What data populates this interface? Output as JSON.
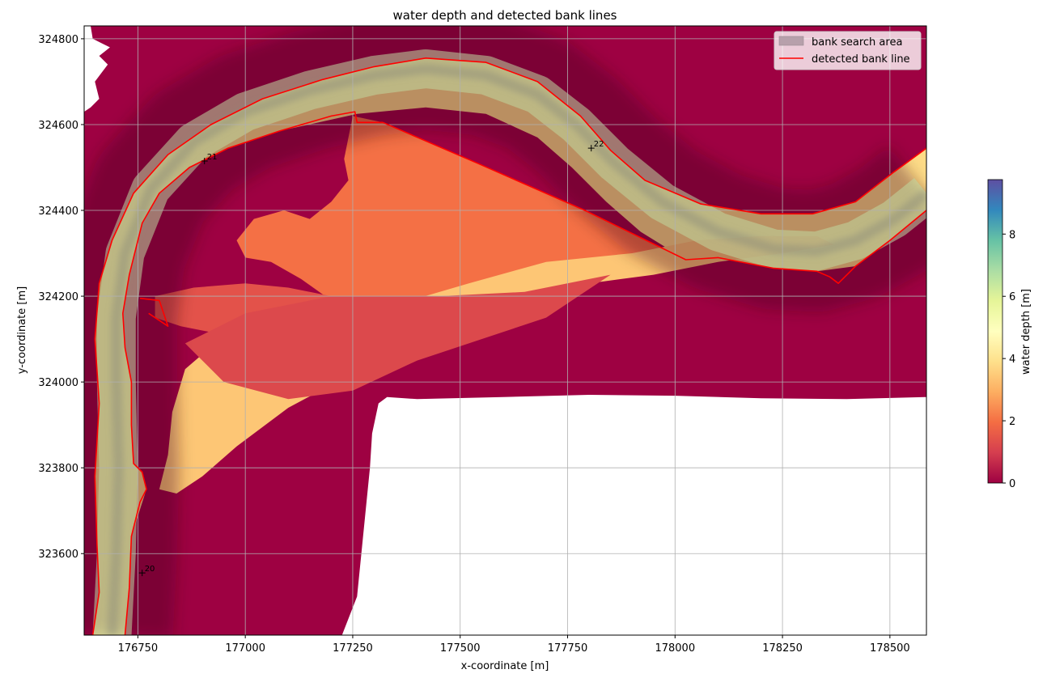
{
  "chart_data": {
    "type": "heatmap",
    "title": "water depth and detected bank lines",
    "xlabel": "x-coordinate [m]",
    "ylabel": "y-coordinate [m]",
    "xlim": [
      176625,
      178585
    ],
    "ylim": [
      323410,
      324830
    ],
    "xticks": [
      176750,
      177000,
      177250,
      177500,
      177750,
      178000,
      178250,
      178500
    ],
    "yticks": [
      323600,
      323800,
      324000,
      324200,
      324400,
      324600,
      324800
    ],
    "grid": true,
    "legend_position": "top-right",
    "legend": [
      {
        "label": "bank search area",
        "type": "patch",
        "color": "#b7a0ab"
      },
      {
        "label": "detected bank line",
        "type": "line",
        "color": "#ff0000"
      }
    ],
    "colorbar": {
      "label": "water depth [m]",
      "min": 0,
      "max": 9.75,
      "ticks": [
        0,
        2,
        4,
        6,
        8
      ],
      "colormap": "Spectral",
      "colors": [
        "#9e0142",
        "#d53e4f",
        "#f46d43",
        "#fdae61",
        "#fee08b",
        "#ffffbf",
        "#e6f598",
        "#abdda4",
        "#66c2a5",
        "#3288bd",
        "#5e4fa2"
      ]
    },
    "background_color": "#9e0142",
    "annotations": [
      {
        "label": "20",
        "x": 176760,
        "y": 323555
      },
      {
        "label": "21",
        "x": 176905,
        "y": 324515
      },
      {
        "label": "22",
        "x": 177805,
        "y": 324545
      }
    ],
    "bank_lines": [
      {
        "name": "left bank",
        "points": [
          [
            176645,
            323410
          ],
          [
            176660,
            323510
          ],
          [
            176655,
            323620
          ],
          [
            176650,
            323780
          ],
          [
            176660,
            323950
          ],
          [
            176650,
            324100
          ],
          [
            176660,
            324230
          ],
          [
            176690,
            324330
          ],
          [
            176740,
            324440
          ],
          [
            176820,
            324530
          ],
          [
            176920,
            324600
          ],
          [
            177040,
            324660
          ],
          [
            177180,
            324705
          ],
          [
            177300,
            324735
          ],
          [
            177420,
            324755
          ],
          [
            177560,
            324745
          ],
          [
            177680,
            324700
          ],
          [
            177780,
            324620
          ],
          [
            177850,
            324540
          ],
          [
            177930,
            324470
          ],
          [
            178060,
            324415
          ],
          [
            178200,
            324392
          ],
          [
            178320,
            324392
          ],
          [
            178420,
            324420
          ],
          [
            178510,
            324490
          ],
          [
            178585,
            324545
          ]
        ]
      },
      {
        "name": "right bank",
        "points": [
          [
            176720,
            323410
          ],
          [
            176730,
            323520
          ],
          [
            176735,
            323640
          ],
          [
            176755,
            323720
          ],
          [
            176770,
            323750
          ],
          [
            176760,
            323790
          ],
          [
            176740,
            323810
          ],
          [
            176735,
            323900
          ],
          [
            176735,
            324000
          ],
          [
            176720,
            324080
          ],
          [
            176715,
            324160
          ],
          [
            176730,
            324250
          ],
          [
            176760,
            324370
          ],
          [
            176800,
            324440
          ],
          [
            176870,
            324500
          ],
          [
            176960,
            324545
          ],
          [
            177080,
            324585
          ],
          [
            177200,
            324620
          ],
          [
            177255,
            324630
          ],
          [
            177260,
            324605
          ],
          [
            177320,
            324605
          ],
          [
            177540,
            324510
          ],
          [
            177790,
            324400
          ],
          [
            178025,
            324285
          ],
          [
            178100,
            324290
          ],
          [
            178230,
            324265
          ],
          [
            178330,
            324258
          ],
          [
            178360,
            324245
          ],
          [
            178380,
            324230
          ],
          [
            178420,
            324270
          ],
          [
            178500,
            324330
          ],
          [
            178585,
            324400
          ]
        ]
      },
      {
        "name": "channel loop",
        "points": [
          [
            176755,
            324195
          ],
          [
            176800,
            324190
          ],
          [
            176820,
            324130
          ],
          [
            176775,
            324160
          ]
        ]
      }
    ],
    "search_area_centerline": [
      [
        176690,
        323410
      ],
      [
        176700,
        323600
      ],
      [
        176705,
        323800
      ],
      [
        176700,
        324000
      ],
      [
        176700,
        324150
      ],
      [
        176720,
        324300
      ],
      [
        176780,
        324450
      ],
      [
        176880,
        324560
      ],
      [
        177000,
        324630
      ],
      [
        177150,
        324680
      ],
      [
        177300,
        324715
      ],
      [
        177420,
        324730
      ],
      [
        177560,
        324715
      ],
      [
        177680,
        324670
      ],
      [
        177770,
        324600
      ],
      [
        177860,
        324510
      ],
      [
        177970,
        324420
      ],
      [
        178100,
        324350
      ],
      [
        178230,
        324310
      ],
      [
        178330,
        324305
      ],
      [
        178420,
        324330
      ],
      [
        178510,
        324380
      ],
      [
        178585,
        324440
      ]
    ],
    "depth_regions": [
      {
        "name": "main channel",
        "depth": 3.8,
        "points": [
          [
            176645,
            323410
          ],
          [
            176660,
            323510
          ],
          [
            176655,
            323620
          ],
          [
            176650,
            323780
          ],
          [
            176660,
            323950
          ],
          [
            176650,
            324100
          ],
          [
            176660,
            324230
          ],
          [
            176690,
            324330
          ],
          [
            176740,
            324440
          ],
          [
            176820,
            324530
          ],
          [
            176920,
            324600
          ],
          [
            177040,
            324660
          ],
          [
            177180,
            324705
          ],
          [
            177300,
            324735
          ],
          [
            177420,
            324755
          ],
          [
            177560,
            324745
          ],
          [
            177680,
            324700
          ],
          [
            177780,
            324620
          ],
          [
            177850,
            324540
          ],
          [
            177930,
            324470
          ],
          [
            178060,
            324415
          ],
          [
            178200,
            324392
          ],
          [
            178320,
            324392
          ],
          [
            178420,
            324420
          ],
          [
            178510,
            324490
          ],
          [
            178585,
            324545
          ],
          [
            178585,
            324400
          ],
          [
            178500,
            324330
          ],
          [
            178420,
            324270
          ],
          [
            178330,
            324258
          ],
          [
            178230,
            324265
          ],
          [
            178100,
            324290
          ],
          [
            178025,
            324285
          ],
          [
            177920,
            324350
          ],
          [
            177840,
            324420
          ],
          [
            177760,
            324500
          ],
          [
            177680,
            324570
          ],
          [
            177560,
            324625
          ],
          [
            177420,
            324640
          ],
          [
            177260,
            324625
          ],
          [
            177080,
            324585
          ],
          [
            176960,
            324545
          ],
          [
            176870,
            324500
          ],
          [
            176800,
            324440
          ],
          [
            176760,
            324370
          ],
          [
            176730,
            324250
          ],
          [
            176715,
            324160
          ],
          [
            176720,
            324080
          ],
          [
            176735,
            324000
          ],
          [
            176735,
            323900
          ],
          [
            176740,
            323810
          ],
          [
            176760,
            323790
          ],
          [
            176770,
            323750
          ],
          [
            176735,
            323640
          ],
          [
            176730,
            323520
          ],
          [
            176720,
            323410
          ]
        ]
      },
      {
        "name": "upper floodplain",
        "depth": 2.0,
        "points": [
          [
            177250,
            324620
          ],
          [
            177320,
            324605
          ],
          [
            177540,
            324510
          ],
          [
            177790,
            324400
          ],
          [
            178025,
            324285
          ],
          [
            177900,
            324260
          ],
          [
            177700,
            324200
          ],
          [
            177550,
            324180
          ],
          [
            177450,
            324150
          ],
          [
            177300,
            324150
          ],
          [
            177200,
            324190
          ],
          [
            177130,
            324240
          ],
          [
            177060,
            324280
          ],
          [
            177000,
            324290
          ],
          [
            176980,
            324330
          ],
          [
            177020,
            324380
          ],
          [
            177090,
            324400
          ],
          [
            177150,
            324380
          ],
          [
            177200,
            324420
          ],
          [
            177240,
            324470
          ],
          [
            177230,
            324520
          ]
        ]
      },
      {
        "name": "lower floodplain",
        "depth": 1.4,
        "points": [
          [
            176790,
            324200
          ],
          [
            176880,
            324220
          ],
          [
            177000,
            324230
          ],
          [
            177100,
            324220
          ],
          [
            177200,
            324200
          ],
          [
            177300,
            324170
          ],
          [
            177350,
            324120
          ],
          [
            177250,
            324100
          ],
          [
            177100,
            324080
          ],
          [
            176950,
            324110
          ],
          [
            176850,
            324130
          ],
          [
            176790,
            324150
          ]
        ]
      },
      {
        "name": "side channel",
        "depth": 3.4,
        "points": [
          [
            176800,
            323750
          ],
          [
            176820,
            323830
          ],
          [
            176830,
            323930
          ],
          [
            176860,
            324030
          ],
          [
            176930,
            324090
          ],
          [
            177050,
            324110
          ],
          [
            177200,
            324130
          ],
          [
            177350,
            324180
          ],
          [
            177520,
            324230
          ],
          [
            177700,
            324280
          ],
          [
            177900,
            324300
          ],
          [
            178050,
            324330
          ],
          [
            178200,
            324340
          ],
          [
            178330,
            324340
          ],
          [
            178370,
            324320
          ],
          [
            178250,
            324300
          ],
          [
            178100,
            324280
          ],
          [
            177950,
            324250
          ],
          [
            177800,
            324230
          ],
          [
            177650,
            324190
          ],
          [
            177450,
            324100
          ],
          [
            177250,
            324020
          ],
          [
            177100,
            323940
          ],
          [
            176980,
            323850
          ],
          [
            176900,
            323780
          ],
          [
            176840,
            323740
          ]
        ]
      },
      {
        "name": "mid floodplain",
        "depth": 1.2,
        "points": [
          [
            176860,
            324090
          ],
          [
            177000,
            324160
          ],
          [
            177200,
            324200
          ],
          [
            177450,
            324200
          ],
          [
            177650,
            324210
          ],
          [
            177850,
            324250
          ],
          [
            177700,
            324150
          ],
          [
            177550,
            324100
          ],
          [
            177400,
            324050
          ],
          [
            177250,
            323980
          ],
          [
            177100,
            323960
          ],
          [
            176950,
            324000
          ]
        ]
      }
    ],
    "blank_regions": [
      {
        "name": "upper-left",
        "points": [
          [
            176625,
            324830
          ],
          [
            176640,
            324830
          ],
          [
            176645,
            324800
          ],
          [
            176685,
            324780
          ],
          [
            176660,
            324760
          ],
          [
            176680,
            324740
          ],
          [
            176650,
            324700
          ],
          [
            176660,
            324660
          ],
          [
            176640,
            324640
          ],
          [
            176625,
            324630
          ]
        ]
      },
      {
        "name": "lower-right",
        "points": [
          [
            177225,
            323410
          ],
          [
            177260,
            323500
          ],
          [
            177270,
            323600
          ],
          [
            177280,
            323700
          ],
          [
            177290,
            323800
          ],
          [
            177295,
            323880
          ],
          [
            177310,
            323950
          ],
          [
            177330,
            323965
          ],
          [
            177400,
            323960
          ],
          [
            177600,
            323965
          ],
          [
            177800,
            323970
          ],
          [
            178000,
            323968
          ],
          [
            178200,
            323962
          ],
          [
            178400,
            323960
          ],
          [
            178585,
            323965
          ],
          [
            178585,
            323410
          ]
        ]
      }
    ]
  }
}
